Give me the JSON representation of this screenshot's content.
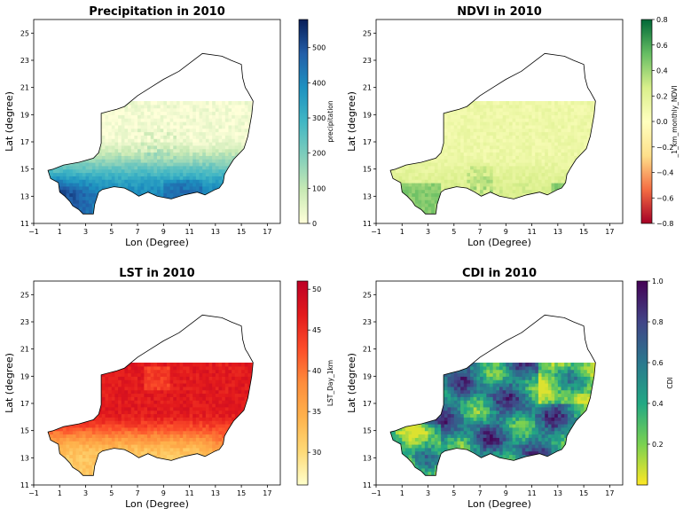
{
  "chart_data": [
    {
      "type": "heatmap",
      "title": "Precipitation in 2010",
      "xlabel": "Lon (Degree)",
      "ylabel": "Lat (degree)",
      "xticks": [
        "−1",
        "1",
        "3",
        "5",
        "7",
        "9",
        "11",
        "13",
        "15",
        "17"
      ],
      "yticks": [
        "11",
        "13",
        "15",
        "17",
        "19",
        "21",
        "23",
        "25"
      ],
      "xlim": [
        -1,
        18
      ],
      "ylim": [
        11,
        26
      ],
      "colorbar": {
        "label": "precipitation",
        "ticks": [
          "0",
          "100",
          "200",
          "300",
          "400",
          "500"
        ],
        "range": [
          0,
          580
        ],
        "cmap": "YlGnBu",
        "colors": [
          "#ffffd9",
          "#c7e9b4",
          "#7fcdbb",
          "#41b6c4",
          "#1d91c0",
          "#225ea8",
          "#081d58"
        ]
      },
      "field": "south-north gradient, wettest in the south-west"
    },
    {
      "type": "heatmap",
      "title": "NDVI in 2010",
      "xlabel": "Lon (Degree)",
      "ylabel": "Lat (degree)",
      "xticks": [
        "−1",
        "1",
        "3",
        "5",
        "7",
        "9",
        "11",
        "13",
        "15",
        "17"
      ],
      "yticks": [
        "11",
        "13",
        "15",
        "17",
        "19",
        "21",
        "23",
        "25"
      ],
      "xlim": [
        -1,
        18
      ],
      "ylim": [
        11,
        26
      ],
      "colorbar": {
        "label": "_1_km_monthly_NDVI",
        "ticks": [
          "−0.8",
          "−0.6",
          "−0.4",
          "−0.2",
          "0.0",
          "0.2",
          "0.4",
          "0.6",
          "0.8"
        ],
        "range": [
          -0.8,
          0.8
        ],
        "cmap": "RdYlGn",
        "colors": [
          "#a50026",
          "#f46d43",
          "#fee08b",
          "#ffffbf",
          "#d9ef8b",
          "#66bd63",
          "#006837"
        ]
      },
      "field": "mostly 0.1–0.3, greener along the southern border"
    },
    {
      "type": "heatmap",
      "title": "LST in 2010",
      "xlabel": "Lon (Degree)",
      "ylabel": "Lat (degree)",
      "xticks": [
        "−1",
        "1",
        "3",
        "5",
        "7",
        "9",
        "11",
        "13",
        "15",
        "17"
      ],
      "yticks": [
        "11",
        "13",
        "15",
        "17",
        "19",
        "21",
        "23",
        "25"
      ],
      "xlim": [
        -1,
        18
      ],
      "ylim": [
        11,
        26
      ],
      "colorbar": {
        "label": "LST_Day_1km",
        "ticks": [
          "30",
          "35",
          "40",
          "45",
          "50"
        ],
        "range": [
          26,
          51
        ],
        "cmap": "YlOrRd",
        "colors": [
          "#ffffcc",
          "#fed976",
          "#feb24c",
          "#fd8d3c",
          "#fc4e2a",
          "#e31a1c",
          "#bd0026"
        ]
      },
      "field": "hot north (~47), cooler south (~33)"
    },
    {
      "type": "heatmap",
      "title": "CDI in 2010",
      "xlabel": "Lon (Degree)",
      "ylabel": "Lat (degree)",
      "xticks": [
        "−1",
        "1",
        "3",
        "5",
        "7",
        "9",
        "11",
        "13",
        "15",
        "17"
      ],
      "yticks": [
        "11",
        "13",
        "15",
        "17",
        "19",
        "21",
        "23",
        "25"
      ],
      "xlim": [
        -1,
        18
      ],
      "ylim": [
        11,
        26
      ],
      "colorbar": {
        "label": "CDI",
        "ticks": [
          "0.2",
          "0.4",
          "0.6",
          "0.8",
          "1.0"
        ],
        "range": [
          0,
          1
        ],
        "cmap": "viridis_r",
        "colors": [
          "#fde725",
          "#7ad151",
          "#22a884",
          "#2a788e",
          "#414487",
          "#440154"
        ]
      },
      "field": "patchy, mixed 0.3–0.9"
    }
  ]
}
